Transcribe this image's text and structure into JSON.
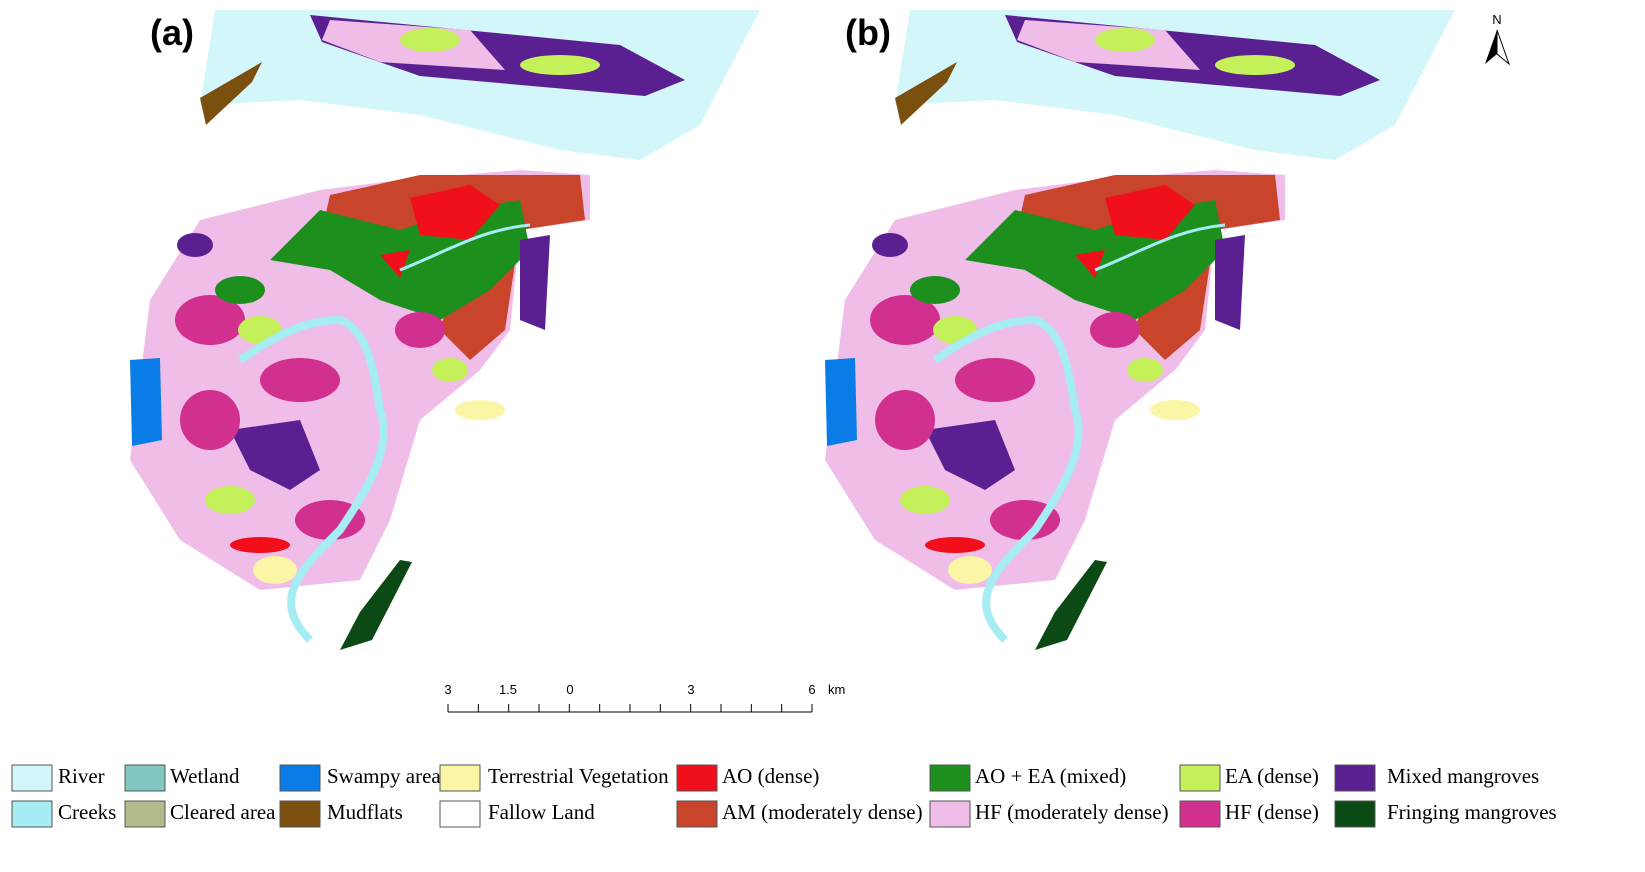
{
  "panels": [
    {
      "label": "(a)"
    },
    {
      "label": "(b)"
    }
  ],
  "north_arrow": "N",
  "scale_bar": {
    "labels": [
      "3",
      "1.5",
      "0",
      "3",
      "6"
    ],
    "unit": "km"
  },
  "legend": [
    {
      "label": "River",
      "color": "#d2f6fa"
    },
    {
      "label": "Creeks",
      "color": "#a6ecf3"
    },
    {
      "label": "Wetland",
      "color": "#80c7c1"
    },
    {
      "label": "Cleared area",
      "color": "#b6b98c"
    },
    {
      "label": "Swampy area",
      "color": "#0a7ce8"
    },
    {
      "label": "Mudflats",
      "color": "#7b4f0e"
    },
    {
      "label": "Terrestrial Vegetation",
      "color": "#fbf5a6"
    },
    {
      "label": "Fallow Land",
      "color": "#ffffff"
    },
    {
      "label": "AO (dense)",
      "color": "#f00f1a"
    },
    {
      "label": "AM (moderately dense)",
      "color": "#c8442b"
    },
    {
      "label": "AO + EA (mixed)",
      "color": "#1c8f1c"
    },
    {
      "label": "HF (moderately dense)",
      "color": "#f0bde9"
    },
    {
      "label": "EA (dense)",
      "color": "#c4f05a"
    },
    {
      "label": "HF (dense)",
      "color": "#d1308f"
    },
    {
      "label": "Mixed mangroves",
      "color": "#5a1f91"
    },
    {
      "label": "Fringing mangroves",
      "color": "#0b4a14"
    }
  ]
}
